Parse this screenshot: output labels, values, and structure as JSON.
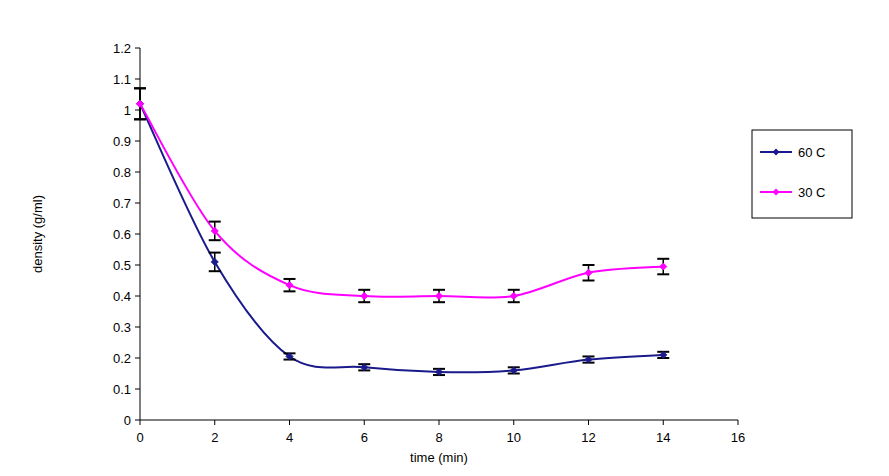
{
  "chart_data": {
    "type": "line",
    "x_label": "time (min)",
    "y_label": "density (g/ml)",
    "x": [
      0,
      2,
      4,
      6,
      8,
      10,
      12,
      14
    ],
    "series": [
      {
        "name": "60 C",
        "color": "#1a1a8c",
        "marker": "diamond",
        "line_style": "smooth",
        "values": [
          1.02,
          0.51,
          0.205,
          0.17,
          0.155,
          0.16,
          0.195,
          0.21
        ],
        "errors": [
          0.05,
          0.03,
          0.01,
          0.01,
          0.01,
          0.01,
          0.01,
          0.01
        ]
      },
      {
        "name": "30 C",
        "color": "#ff00ff",
        "marker": "diamond",
        "line_style": "smooth",
        "values": [
          1.02,
          0.61,
          0.435,
          0.4,
          0.4,
          0.4,
          0.475,
          0.495
        ],
        "errors": [
          0.05,
          0.03,
          0.02,
          0.02,
          0.02,
          0.02,
          0.025,
          0.025
        ]
      }
    ],
    "xlim": [
      0,
      16
    ],
    "xticks": [
      0,
      2,
      4,
      6,
      8,
      10,
      12,
      14,
      16
    ],
    "ylim": [
      0,
      1.2
    ],
    "yticks": [
      0,
      0.1,
      0.2,
      0.3,
      0.4,
      0.5,
      0.6,
      0.7,
      0.8,
      0.9,
      1,
      1.1,
      1.2
    ],
    "grid": false,
    "legend": "right"
  }
}
